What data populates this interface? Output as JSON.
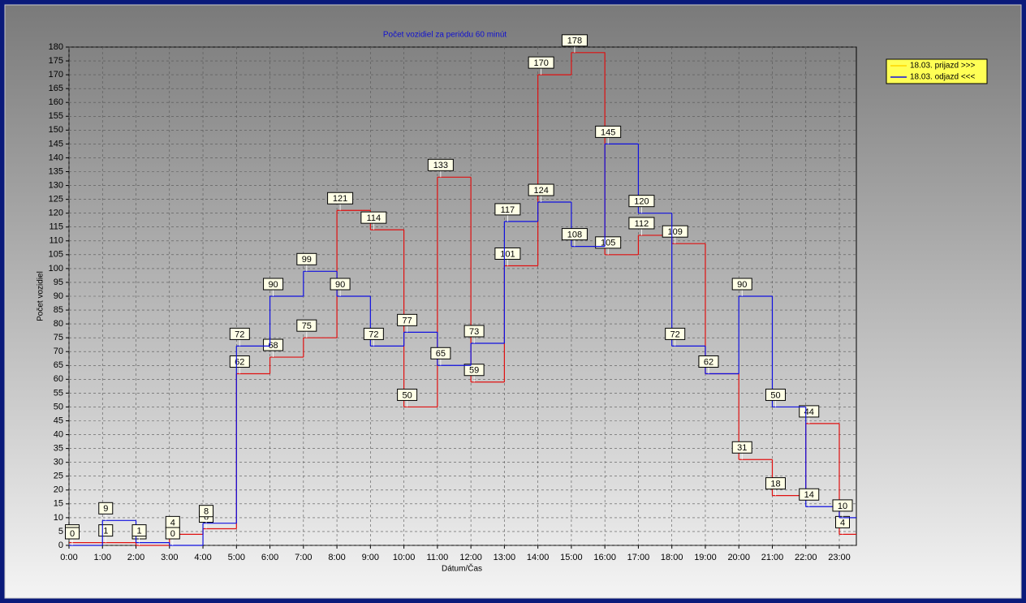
{
  "chart_data": {
    "type": "step",
    "title": "Počet vozidiel za periódu 60 minút",
    "x_label": "Dátum/Čas",
    "y_label": "Počet vozidiel",
    "categories": [
      "0:00",
      "1:00",
      "2:00",
      "3:00",
      "4:00",
      "5:00",
      "6:00",
      "7:00",
      "8:00",
      "9:00",
      "10:00",
      "11:00",
      "12:00",
      "13:00",
      "14:00",
      "15:00",
      "16:00",
      "17:00",
      "18:00",
      "19:00",
      "20:00",
      "21:00",
      "22:00",
      "23:00"
    ],
    "series": [
      {
        "name": "18.03.  prijazd >>>",
        "color": "#e01010",
        "legend_color": "#ffd700",
        "values": [
          1,
          1,
          0,
          4,
          6,
          62,
          68,
          75,
          121,
          114,
          50,
          133,
          59,
          101,
          170,
          178,
          105,
          112,
          109,
          62,
          31,
          18,
          44,
          4
        ]
      },
      {
        "name": "18.03.  odjazd <<<",
        "color": "#1010e0",
        "legend_color": "#1010e0",
        "values": [
          0,
          9,
          1,
          0,
          8,
          72,
          90,
          99,
          90,
          72,
          77,
          65,
          73,
          117,
          124,
          108,
          145,
          120,
          72,
          62,
          90,
          50,
          14,
          10
        ]
      }
    ],
    "ylim": [
      0,
      180
    ],
    "yticks": [
      0,
      5,
      10,
      15,
      20,
      25,
      30,
      35,
      40,
      45,
      50,
      55,
      60,
      65,
      70,
      75,
      80,
      85,
      90,
      95,
      100,
      105,
      110,
      115,
      120,
      125,
      130,
      135,
      140,
      145,
      150,
      155,
      160,
      165,
      170,
      175,
      180
    ],
    "grid": true,
    "legend": "top-right"
  }
}
